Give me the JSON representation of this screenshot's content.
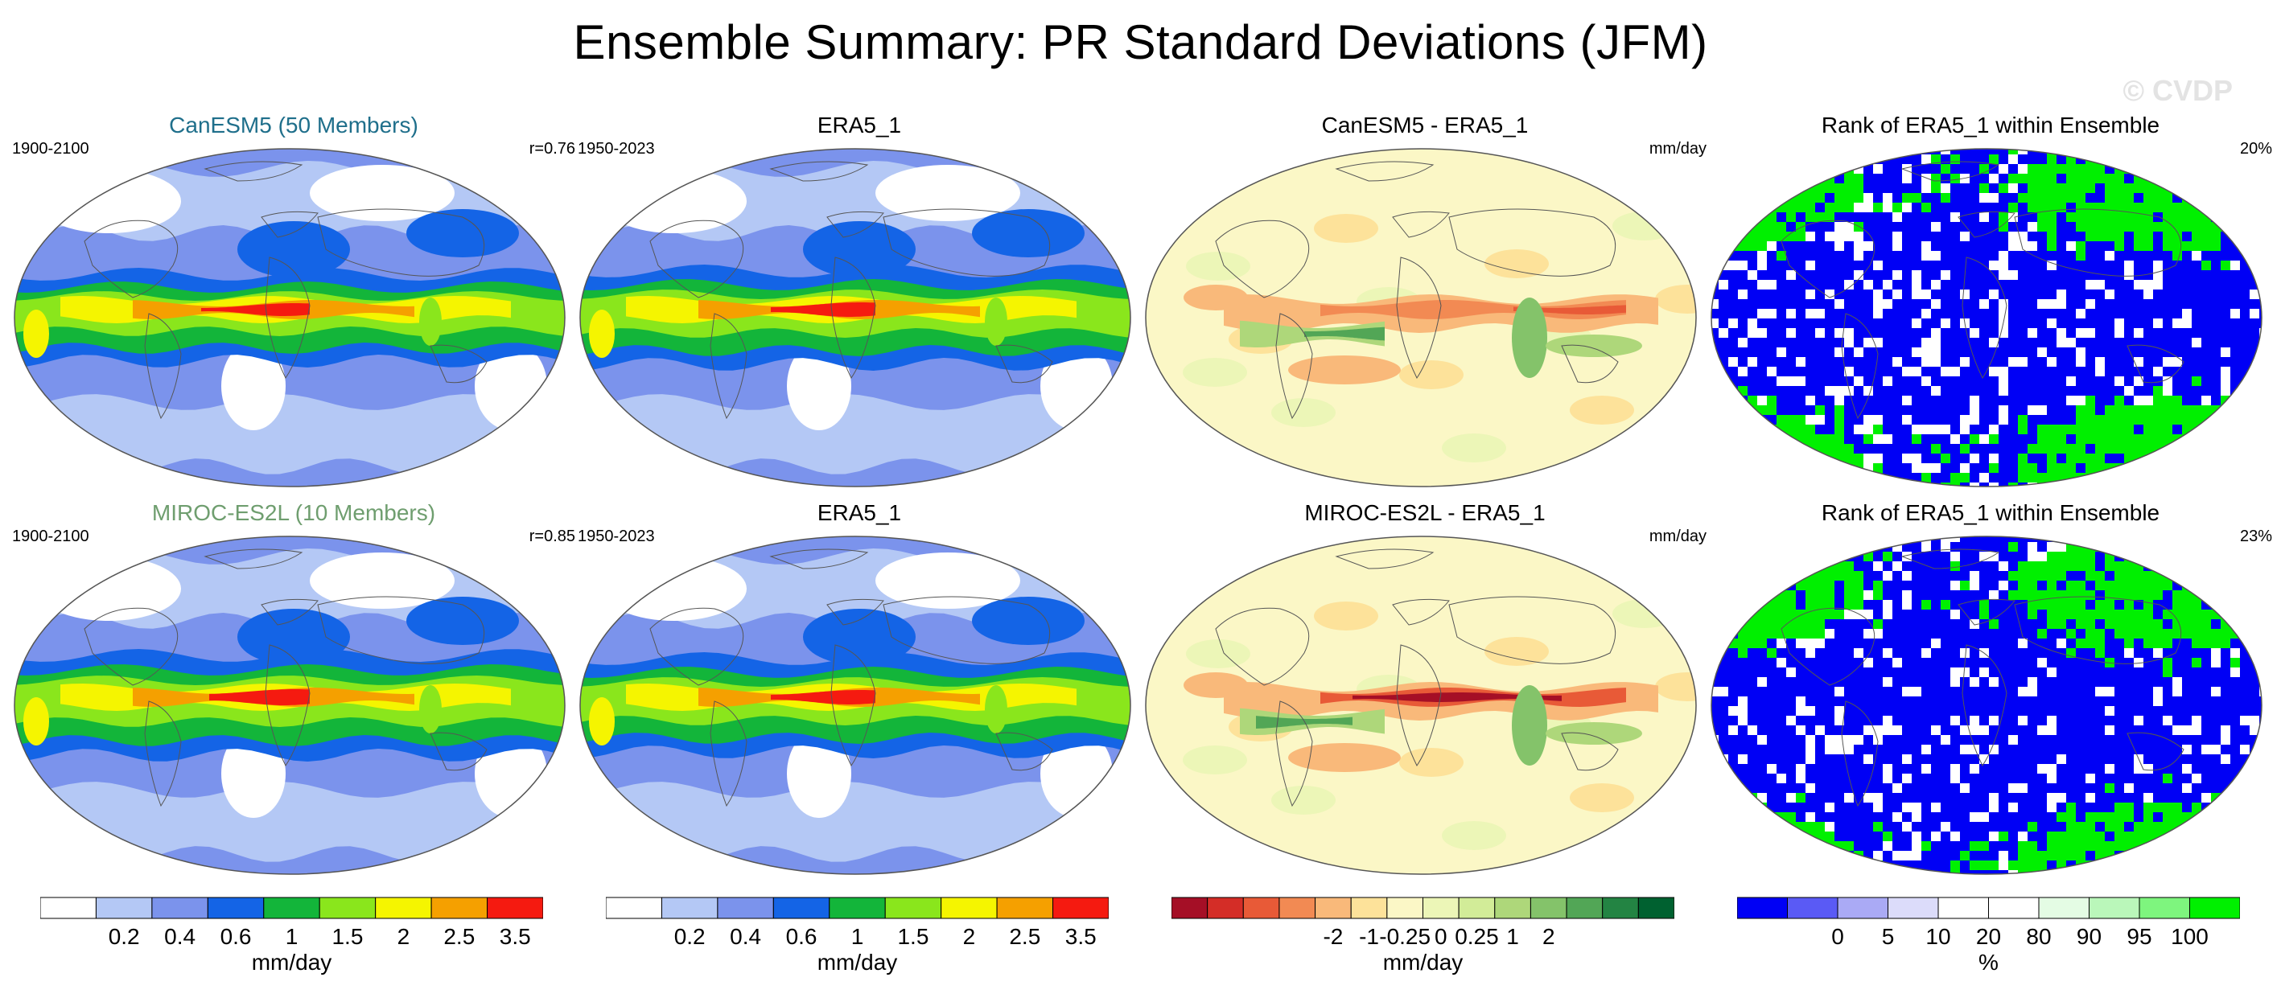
{
  "title": "Ensemble Summary: PR Standard Deviations (JFM)",
  "watermark": "© CVDP",
  "rows": [
    {
      "model_panel": {
        "title": "CanESM5 (50 Members)",
        "title_color": "#1f6f8b",
        "left": "1900-2100",
        "right": "r=0.76"
      },
      "obs_panel": {
        "title": "ERA5_1",
        "left": "1950-2023",
        "right": ""
      },
      "diff_panel": {
        "title": "CanESM5 - ERA5_1",
        "left": "",
        "right": "mm/day"
      },
      "rank_panel": {
        "title": "Rank of ERA5_1 within Ensemble",
        "left": "",
        "right": "20%"
      }
    },
    {
      "model_panel": {
        "title": "MIROC-ES2L (10 Members)",
        "title_color": "#6f9e6f",
        "left": "1900-2100",
        "right": "r=0.85"
      },
      "obs_panel": {
        "title": "ERA5_1",
        "left": "1950-2023",
        "right": ""
      },
      "diff_panel": {
        "title": "MIROC-ES2L - ERA5_1",
        "left": "",
        "right": "mm/day"
      },
      "rank_panel": {
        "title": "Rank of ERA5_1 within Ensemble",
        "left": "",
        "right": "23%"
      }
    }
  ],
  "colorbars": [
    {
      "label": "mm/day",
      "colors": [
        "#ffffff",
        "#b4c8f5",
        "#7b93ec",
        "#1464e6",
        "#13b53a",
        "#8ae61c",
        "#f5f500",
        "#f5a000",
        "#f51a10"
      ],
      "ticks": [
        "0.2",
        "0.4",
        "0.6",
        "1",
        "1.5",
        "2",
        "2.5",
        "3.5"
      ]
    },
    {
      "label": "mm/day",
      "colors": [
        "#ffffff",
        "#b4c8f5",
        "#7b93ec",
        "#1464e6",
        "#13b53a",
        "#8ae61c",
        "#f5f500",
        "#f5a000",
        "#f51a10"
      ],
      "ticks": [
        "0.2",
        "0.4",
        "0.6",
        "1",
        "1.5",
        "2",
        "2.5",
        "3.5"
      ]
    },
    {
      "label": "mm/day",
      "colors": [
        "#a50f26",
        "#d42d27",
        "#e85a37",
        "#f28a53",
        "#f9b97a",
        "#fde29a",
        "#fbf7c6",
        "#ecf6b7",
        "#d2ec98",
        "#aed77a",
        "#84c36a",
        "#52a656",
        "#238443",
        "#006130"
      ],
      "ticks": [
        "-2",
        "-1",
        "-0.25",
        "0",
        "0.25",
        "1",
        "2"
      ]
    },
    {
      "label": "%",
      "colors": [
        "#0000f5",
        "#5a5af5",
        "#aaaaf5",
        "#dcdcfa",
        "#ffffff",
        "#ffffff",
        "#e4fce4",
        "#baf7ba",
        "#7ef57e",
        "#00f000"
      ],
      "ticks": [
        "0",
        "5",
        "10",
        "20",
        "80",
        "90",
        "95",
        "100"
      ]
    }
  ]
}
